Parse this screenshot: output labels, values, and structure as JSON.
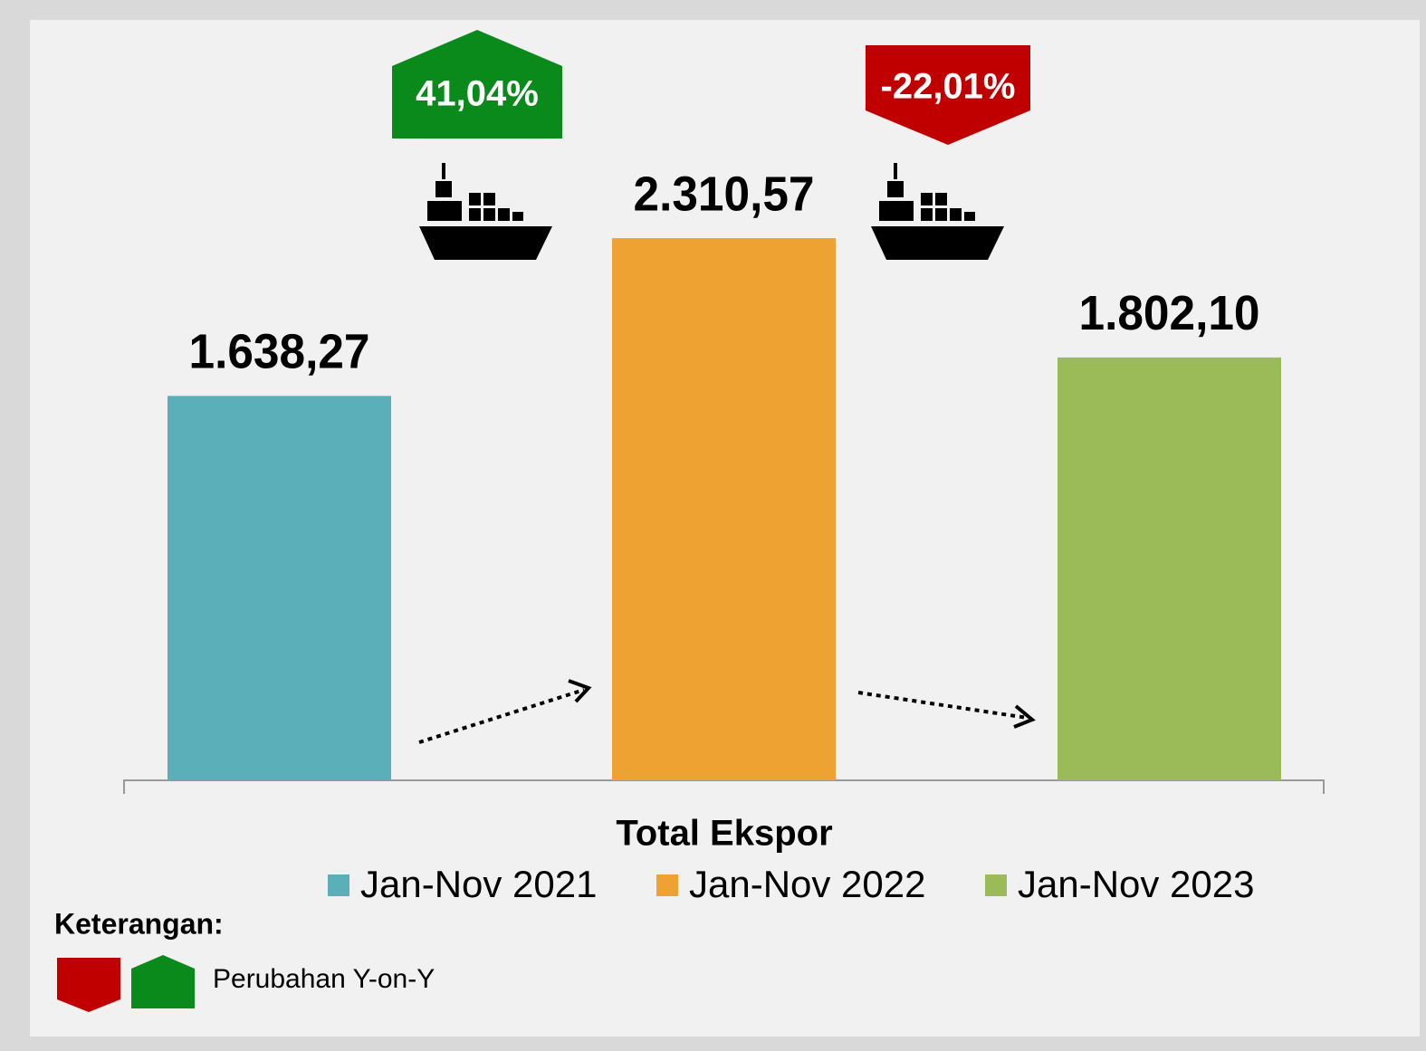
{
  "chart_data": {
    "type": "bar",
    "categories": [
      "Total Ekspor"
    ],
    "series": [
      {
        "name": "Jan-Nov 2021",
        "color": "#5aafb9",
        "values": [
          1638.27
        ],
        "value_labels": [
          "1.638,27"
        ]
      },
      {
        "name": "Jan-Nov 2022",
        "color": "#eea232",
        "values": [
          2310.57
        ],
        "value_labels": [
          "2.310,57"
        ]
      },
      {
        "name": "Jan-Nov 2023",
        "color": "#9bbb59",
        "values": [
          1802.1
        ],
        "value_labels": [
          "1.802,10"
        ]
      }
    ],
    "ylim": [
      0,
      2500
    ],
    "changes": [
      {
        "value": 41.04,
        "label": "41,04%",
        "color": "#0a8a1a"
      },
      {
        "value": -22.01,
        "label": "-22,01%",
        "color": "#c00000"
      }
    ],
    "note": {
      "title": "Keterangan:",
      "text": "Perubahan Y-on-Y"
    }
  }
}
